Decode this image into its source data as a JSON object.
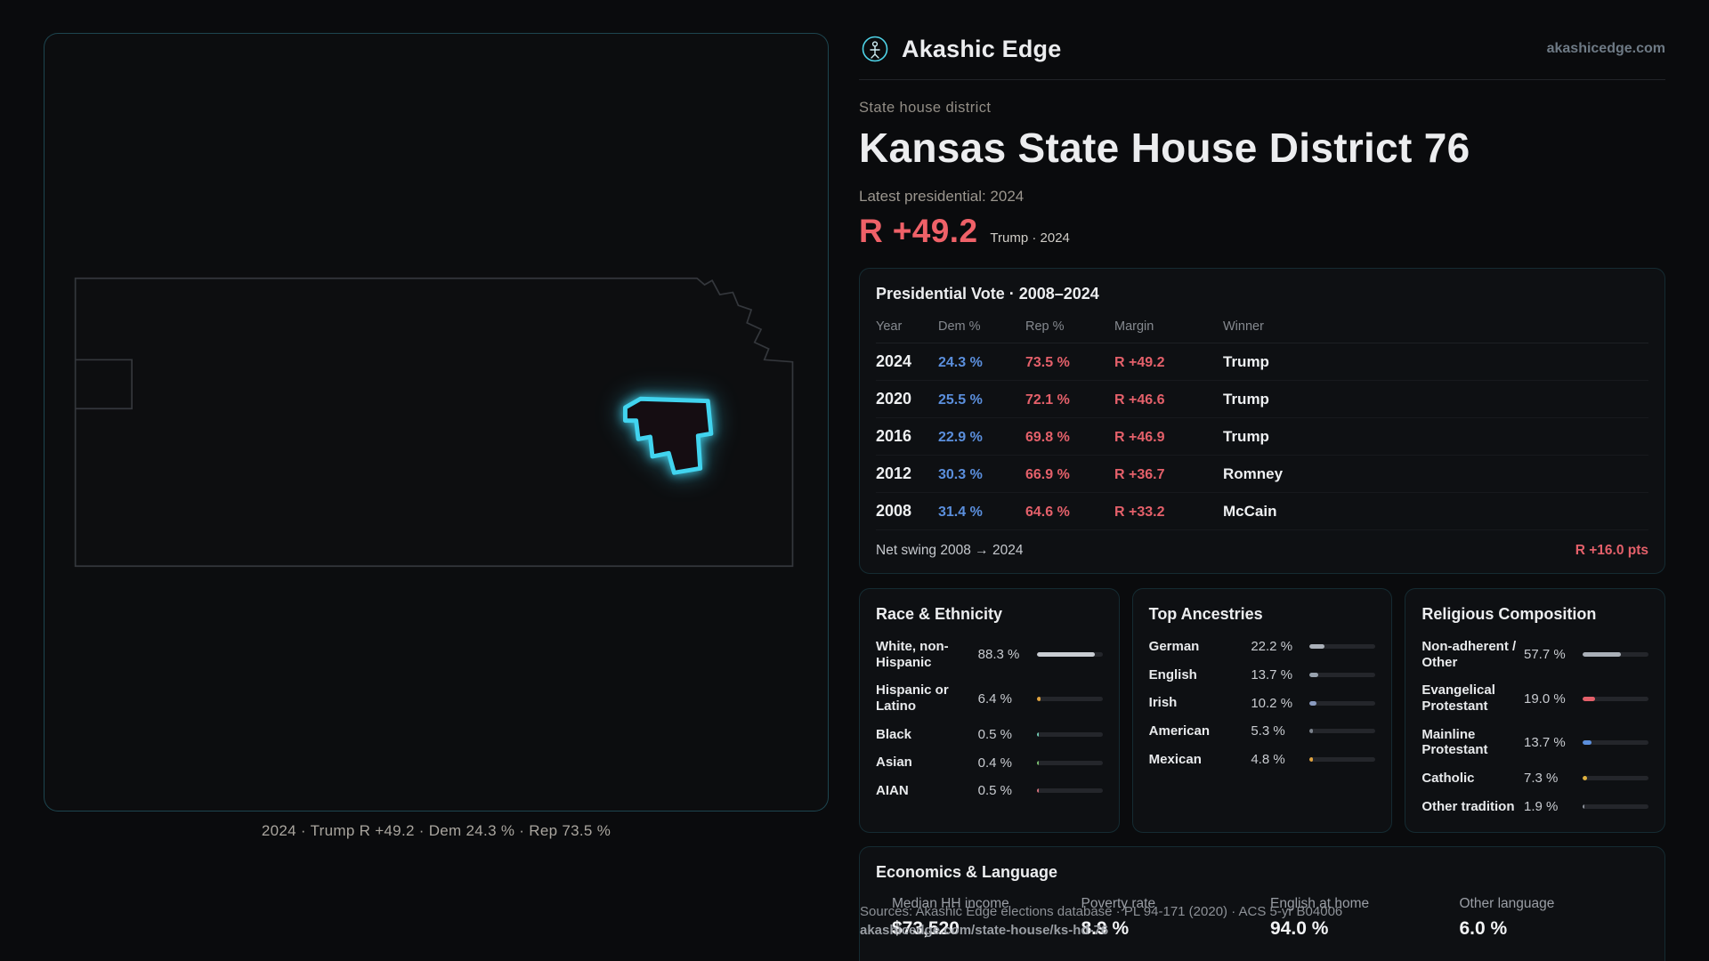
{
  "site": {
    "brand": "Akashic Edge",
    "domain": "akashicedge.com"
  },
  "accent_colors": {
    "cyan": "#41d4ef",
    "rep_red": "#e4606a",
    "dem_blue": "#5b8fdd"
  },
  "map": {
    "caption": "2024 · Trump R +49.2 · Dem 24.3 % · Rep 73.5 %"
  },
  "header": {
    "kicker": "State house district",
    "title": "Kansas State House District 76",
    "latest_label": "Latest presidential: 2024",
    "margin_value": "R +49.2",
    "margin_caption": "Trump · 2024"
  },
  "presidential": {
    "title": "Presidential Vote · 2008–2024",
    "columns": [
      "Year",
      "Dem %",
      "Rep %",
      "Margin",
      "Winner"
    ],
    "rows": [
      {
        "year": "2024",
        "dem": "24.3 %",
        "rep": "73.5 %",
        "margin": "R +49.2",
        "winner": "Trump"
      },
      {
        "year": "2020",
        "dem": "25.5 %",
        "rep": "72.1 %",
        "margin": "R +46.6",
        "winner": "Trump"
      },
      {
        "year": "2016",
        "dem": "22.9 %",
        "rep": "69.8 %",
        "margin": "R +46.9",
        "winner": "Trump"
      },
      {
        "year": "2012",
        "dem": "30.3 %",
        "rep": "66.9 %",
        "margin": "R +36.7",
        "winner": "Romney"
      },
      {
        "year": "2008",
        "dem": "31.4 %",
        "rep": "64.6 %",
        "margin": "R +33.2",
        "winner": "McCain"
      }
    ],
    "net_swing_label": "Net swing 2008 → 2024",
    "net_swing_value": "R +16.0 pts"
  },
  "demographics": [
    {
      "title": "Race & Ethnicity",
      "rows": [
        {
          "label": "White, non-Hispanic",
          "value": "88.3 %",
          "pct": 88.3,
          "color": "#c9cdd3"
        },
        {
          "label": "Hispanic or Latino",
          "value": "6.4 %",
          "pct": 6.4,
          "color": "#e0a33f"
        },
        {
          "label": "Black",
          "value": "0.5 %",
          "pct": 0.5,
          "color": "#6fc7b1"
        },
        {
          "label": "Asian",
          "value": "0.4 %",
          "pct": 0.4,
          "color": "#7bbf6f"
        },
        {
          "label": "AIAN",
          "value": "0.5 %",
          "pct": 0.5,
          "color": "#d2707a"
        }
      ]
    },
    {
      "title": "Top Ancestries",
      "rows": [
        {
          "label": "German",
          "value": "22.2 %",
          "pct": 22.2,
          "color": "#aab0b8"
        },
        {
          "label": "English",
          "value": "13.7 %",
          "pct": 13.7,
          "color": "#98a2ae"
        },
        {
          "label": "Irish",
          "value": "10.2 %",
          "pct": 10.2,
          "color": "#8a9bc0"
        },
        {
          "label": "American",
          "value": "5.3 %",
          "pct": 5.3,
          "color": "#7b828c"
        },
        {
          "label": "Mexican",
          "value": "4.8 %",
          "pct": 4.8,
          "color": "#e0a33f"
        }
      ]
    },
    {
      "title": "Religious Composition",
      "rows": [
        {
          "label": "Non-adherent / Other",
          "value": "57.7 %",
          "pct": 57.7,
          "color": "#aab0b8"
        },
        {
          "label": "Evangelical Protestant",
          "value": "19.0 %",
          "pct": 19.0,
          "color": "#e4606a"
        },
        {
          "label": "Mainline Protestant",
          "value": "13.7 %",
          "pct": 13.7,
          "color": "#5b8fdd"
        },
        {
          "label": "Catholic",
          "value": "7.3 %",
          "pct": 7.3,
          "color": "#e0b23f"
        },
        {
          "label": "Other tradition",
          "value": "1.9 %",
          "pct": 1.9,
          "color": "#8a8f98"
        }
      ]
    }
  ],
  "economics": {
    "title": "Economics & Language",
    "stats": [
      {
        "label": "Median HH income",
        "value": "$73,520"
      },
      {
        "label": "Poverty rate",
        "value": "8.9 %"
      },
      {
        "label": "English at home",
        "value": "94.0 %"
      },
      {
        "label": "Other language",
        "value": "6.0 %"
      }
    ]
  },
  "footer": {
    "sources": "Sources: Akashic Edge elections database · PL 94-171 (2020) · ACS 5-yr B04006",
    "permalink": "akashicedge.com/state-house/ks-hd-76"
  }
}
